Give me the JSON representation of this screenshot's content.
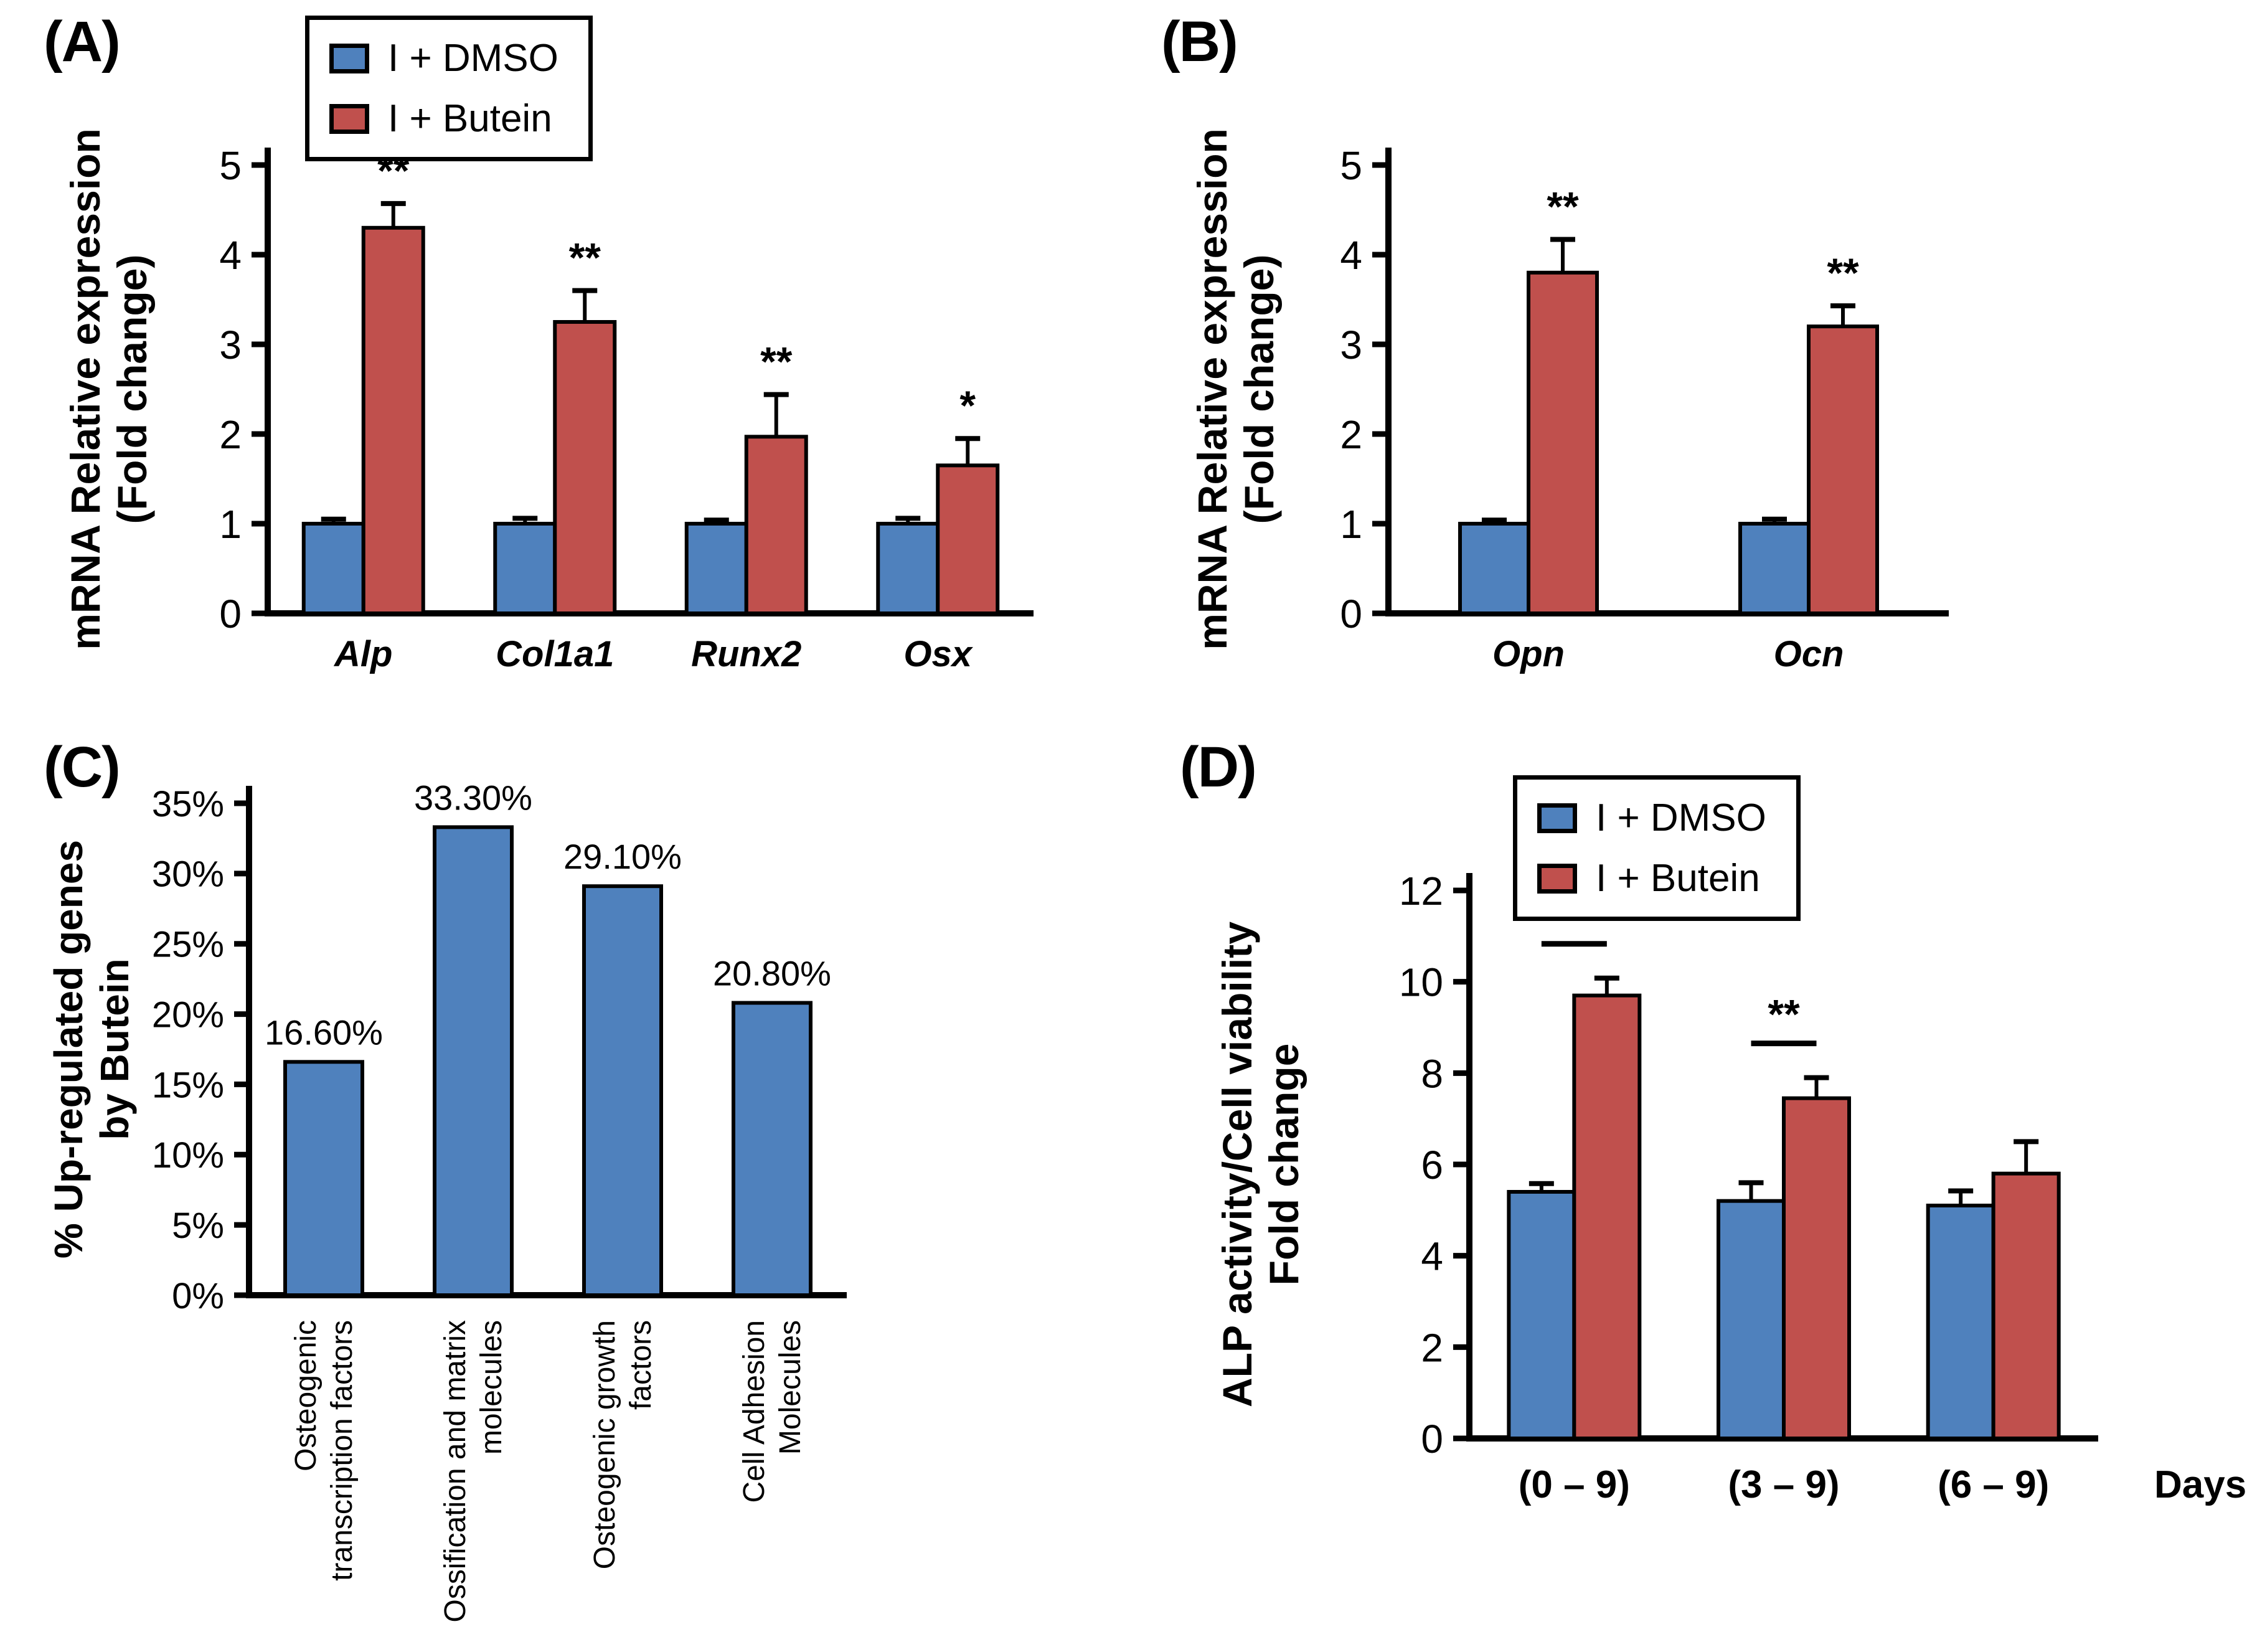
{
  "colors": {
    "dmso_blue": "#4F81BD",
    "butein_red": "#C0504D",
    "axis_black": "#000000",
    "background": "#FFFFFF"
  },
  "legend": {
    "items": [
      {
        "label": "I + DMSO",
        "color_key": "dmso_blue"
      },
      {
        "label": "I + Butein",
        "color_key": "butein_red"
      }
    ]
  },
  "panels": {
    "A": {
      "label": "(A)"
    },
    "B": {
      "label": "(B)"
    },
    "C": {
      "label": "(C)"
    },
    "D": {
      "label": "(D)"
    }
  },
  "chart_data": [
    {
      "panel": "A",
      "type": "bar",
      "categories": [
        "Alp",
        "Col1a1",
        "Runx2",
        "Osx"
      ],
      "series": [
        {
          "name": "I + DMSO",
          "color": "#4F81BD",
          "values": [
            1.0,
            1.0,
            1.0,
            1.0
          ],
          "errors": [
            0.05,
            0.06,
            0.04,
            0.06
          ]
        },
        {
          "name": "I + Butein",
          "color": "#C0504D",
          "values": [
            4.3,
            3.25,
            1.97,
            1.65
          ],
          "errors": [
            0.27,
            0.35,
            0.47,
            0.3
          ]
        }
      ],
      "significance": [
        "**",
        "**",
        "**",
        "*"
      ],
      "ylabel": [
        "mRNA Relative expression",
        "(Fold change)"
      ],
      "ylim": [
        0,
        5
      ],
      "yticks": {
        "values": [
          0,
          1,
          2,
          3,
          4,
          5
        ],
        "labels": [
          "0",
          "1",
          "2",
          "3",
          "4",
          "5"
        ]
      },
      "legend_position": "top",
      "grid": false
    },
    {
      "panel": "B",
      "type": "bar",
      "categories": [
        "Opn",
        "Ocn"
      ],
      "series": [
        {
          "name": "I + DMSO",
          "color": "#4F81BD",
          "values": [
            1.0,
            1.0
          ],
          "errors": [
            0.04,
            0.05
          ]
        },
        {
          "name": "I + Butein",
          "color": "#C0504D",
          "values": [
            3.8,
            3.2
          ],
          "errors": [
            0.37,
            0.23
          ]
        }
      ],
      "significance": [
        "**",
        "**"
      ],
      "ylabel": [
        "mRNA Relative expression",
        "(Fold change)"
      ],
      "ylim": [
        0,
        5
      ],
      "yticks": {
        "values": [
          0,
          1,
          2,
          3,
          4,
          5
        ],
        "labels": [
          "0",
          "1",
          "2",
          "3",
          "4",
          "5"
        ]
      },
      "grid": false
    },
    {
      "panel": "C",
      "type": "bar",
      "categories": [
        "Osteogenic\ntranscription factors",
        "Ossification and matrix\nmolecules",
        "Osteogenic growth\nfactors",
        "Cell Adhesion\nMolecules"
      ],
      "series": [
        {
          "name": "% Up-regulated genes by Butein",
          "color": "#4F81BD",
          "values": [
            16.6,
            33.3,
            29.1,
            20.8
          ]
        }
      ],
      "data_labels": [
        "16.60%",
        "33.30%",
        "29.10%",
        "20.80%"
      ],
      "ylabel": [
        "% Up-regulated genes",
        "by Butein"
      ],
      "ylim": [
        0,
        35
      ],
      "yticks": {
        "values": [
          0,
          5,
          10,
          15,
          20,
          25,
          30,
          35
        ],
        "labels": [
          "0%",
          "5%",
          "10%",
          "15%",
          "20%",
          "25%",
          "30%",
          "35%"
        ]
      },
      "grid": false
    },
    {
      "panel": "D",
      "type": "bar",
      "categories": [
        "(0 – 9)",
        "(3 – 9)",
        "(6 – 9)"
      ],
      "x_axis_suffix": "Days",
      "series": [
        {
          "name": "I + DMSO",
          "color": "#4F81BD",
          "values": [
            5.4,
            5.2,
            5.1
          ],
          "errors": [
            0.18,
            0.4,
            0.32
          ]
        },
        {
          "name": "I + Butein",
          "color": "#C0504D",
          "values": [
            9.7,
            7.45,
            5.8
          ],
          "errors": [
            0.38,
            0.45,
            0.7
          ]
        }
      ],
      "sig_brackets": [
        {
          "group_index": 0,
          "label": "**"
        },
        {
          "group_index": 1,
          "label": "**"
        }
      ],
      "ylabel": [
        "ALP activity/Cell viability",
        "Fold change"
      ],
      "ylim": [
        0,
        12
      ],
      "yticks": {
        "values": [
          0,
          2,
          4,
          6,
          8,
          10,
          12
        ],
        "labels": [
          "0",
          "2",
          "4",
          "6",
          "8",
          "10",
          "12"
        ]
      },
      "legend_position": "top",
      "grid": false
    }
  ]
}
